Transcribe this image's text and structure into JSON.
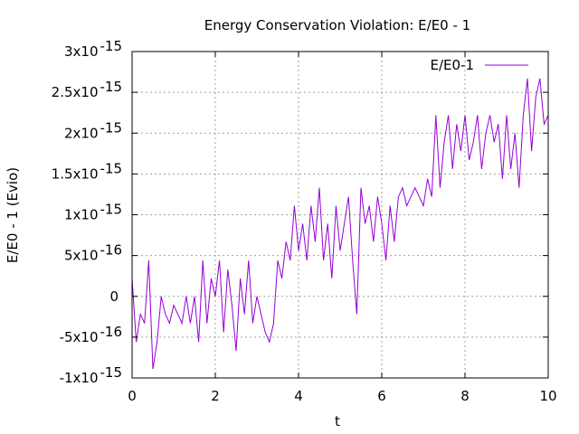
{
  "chart_data": {
    "type": "line",
    "title": "Energy Conservation Violation: E/E0 - 1",
    "xlabel": "t",
    "ylabel": "E/E0 - 1 (Evio)",
    "xlim": [
      0,
      10
    ],
    "ylim": [
      -1e-15,
      3e-15
    ],
    "grid": true,
    "legend_position": "top-right",
    "x_ticks": [
      {
        "value": 0,
        "label": "0"
      },
      {
        "value": 2,
        "label": "2"
      },
      {
        "value": 4,
        "label": "4"
      },
      {
        "value": 6,
        "label": "6"
      },
      {
        "value": 8,
        "label": "8"
      },
      {
        "value": 10,
        "label": "10"
      }
    ],
    "y_ticks": [
      {
        "value": -1e-15,
        "mant": "-1x10",
        "exp": "-15"
      },
      {
        "value": -5e-16,
        "mant": "-5x10",
        "exp": "-16"
      },
      {
        "value": 0,
        "mant": "0",
        "exp": ""
      },
      {
        "value": 5e-16,
        "mant": "5x10",
        "exp": "-16"
      },
      {
        "value": 1e-15,
        "mant": "1x10",
        "exp": "-15"
      },
      {
        "value": 1.5e-15,
        "mant": "1.5x10",
        "exp": "-15"
      },
      {
        "value": 2e-15,
        "mant": "2x10",
        "exp": "-15"
      },
      {
        "value": 2.5e-15,
        "mant": "2.5x10",
        "exp": "-15"
      },
      {
        "value": 3e-15,
        "mant": "3x10",
        "exp": "-15"
      }
    ],
    "series": [
      {
        "name": "E/E0-1",
        "color": "#9400d3",
        "x": [
          0,
          0.1,
          0.2,
          0.3,
          0.4,
          0.5,
          0.6,
          0.7,
          0.8,
          0.9,
          1.0,
          1.1,
          1.2,
          1.3,
          1.4,
          1.5,
          1.6,
          1.7,
          1.8,
          1.9,
          2.0,
          2.1,
          2.2,
          2.3,
          2.4,
          2.5,
          2.6,
          2.7,
          2.8,
          2.9,
          3.0,
          3.1,
          3.2,
          3.3,
          3.4,
          3.5,
          3.6,
          3.7,
          3.8,
          3.9,
          4.0,
          4.1,
          4.2,
          4.3,
          4.4,
          4.5,
          4.6,
          4.7,
          4.8,
          4.9,
          5.0,
          5.1,
          5.2,
          5.3,
          5.4,
          5.5,
          5.6,
          5.7,
          5.8,
          5.9,
          6.0,
          6.1,
          6.2,
          6.3,
          6.4,
          6.5,
          6.6,
          6.7,
          6.8,
          6.9,
          7.0,
          7.1,
          7.2,
          7.3,
          7.4,
          7.5,
          7.6,
          7.7,
          7.8,
          7.9,
          8.0,
          8.1,
          8.2,
          8.3,
          8.4,
          8.5,
          8.6,
          8.7,
          8.8,
          8.9,
          9.0,
          9.1,
          9.2,
          9.3,
          9.4,
          9.5,
          9.6,
          9.7,
          9.8,
          9.9,
          10.0
        ],
        "y": [
          2.2e-16,
          -5.6e-16,
          -2.2e-16,
          -3.3e-16,
          4.4e-16,
          -8.9e-16,
          -5.6e-16,
          0,
          -2.2e-16,
          -3.3e-16,
          -1.1e-16,
          -2.2e-16,
          -3.3e-16,
          0,
          -3.3e-16,
          0,
          -5.6e-16,
          4.4e-16,
          -3.3e-16,
          2.2e-16,
          0,
          4.4e-16,
          -4.4e-16,
          3.3e-16,
          -1.1e-16,
          -6.7e-16,
          2.2e-16,
          -2.2e-16,
          4.4e-16,
          -3.3e-16,
          0,
          -2.2e-16,
          -4.4e-16,
          -5.6e-16,
          -3.3e-16,
          4.4e-16,
          2.2e-16,
          6.7e-16,
          4.4e-16,
          1.11e-15,
          5.6e-16,
          8.9e-16,
          4.4e-16,
          1.11e-15,
          6.7e-16,
          1.33e-15,
          4.4e-16,
          8.9e-16,
          2.2e-16,
          1.11e-15,
          5.6e-16,
          8.9e-16,
          1.22e-15,
          4.4e-16,
          -2.2e-16,
          1.33e-15,
          8.9e-16,
          1.11e-15,
          6.7e-16,
          1.22e-15,
          8.9e-16,
          4.4e-16,
          1.11e-15,
          6.7e-16,
          1.22e-15,
          1.33e-15,
          1.11e-15,
          1.22e-15,
          1.33e-15,
          1.22e-15,
          1.11e-15,
          1.44e-15,
          1.22e-15,
          2.22e-15,
          1.33e-15,
          1.89e-15,
          2.22e-15,
          1.56e-15,
          2.11e-15,
          1.78e-15,
          2.22e-15,
          1.67e-15,
          1.89e-15,
          2.22e-15,
          1.56e-15,
          2e-15,
          2.22e-15,
          1.89e-15,
          2.11e-15,
          1.44e-15,
          2.22e-15,
          1.56e-15,
          2e-15,
          1.33e-15,
          2.22e-15,
          2.67e-15,
          1.78e-15,
          2.44e-15,
          2.67e-15,
          2.11e-15,
          2.22e-15
        ]
      }
    ]
  }
}
